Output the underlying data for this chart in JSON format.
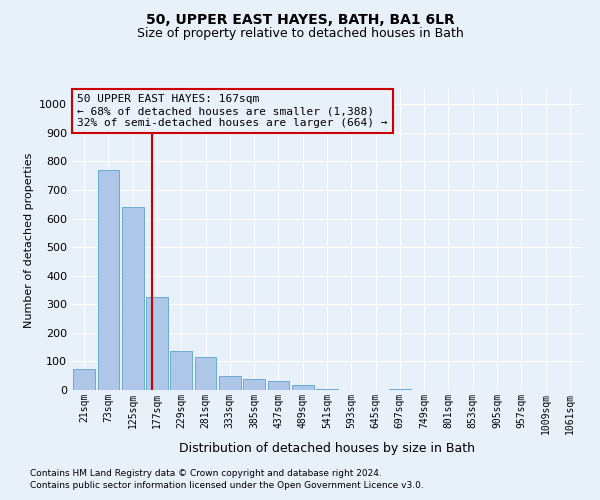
{
  "title": "50, UPPER EAST HAYES, BATH, BA1 6LR",
  "subtitle": "Size of property relative to detached houses in Bath",
  "xlabel": "Distribution of detached houses by size in Bath",
  "ylabel": "Number of detached properties",
  "bar_labels": [
    "21sqm",
    "73sqm",
    "125sqm",
    "177sqm",
    "229sqm",
    "281sqm",
    "333sqm",
    "385sqm",
    "437sqm",
    "489sqm",
    "541sqm",
    "593sqm",
    "645sqm",
    "697sqm",
    "749sqm",
    "801sqm",
    "853sqm",
    "905sqm",
    "957sqm",
    "1009sqm",
    "1061sqm"
  ],
  "bar_values": [
    75,
    770,
    640,
    325,
    135,
    115,
    50,
    40,
    32,
    18,
    5,
    0,
    0,
    5,
    0,
    0,
    0,
    0,
    0,
    0,
    0
  ],
  "bar_color": "#aec6e8",
  "bar_edge_color": "#6aabd2",
  "vline_color": "#cc0000",
  "annotation_text": "50 UPPER EAST HAYES: 167sqm\n← 68% of detached houses are smaller (1,388)\n32% of semi-detached houses are larger (664) →",
  "annotation_box_edgecolor": "#cc0000",
  "ylim": [
    0,
    1050
  ],
  "yticks": [
    0,
    100,
    200,
    300,
    400,
    500,
    600,
    700,
    800,
    900,
    1000
  ],
  "bg_color": "#e8f0fa",
  "grid_color": "#ffffff",
  "footnote1": "Contains HM Land Registry data © Crown copyright and database right 2024.",
  "footnote2": "Contains public sector information licensed under the Open Government Licence v3.0.",
  "title_fontsize": 10,
  "subtitle_fontsize": 9
}
